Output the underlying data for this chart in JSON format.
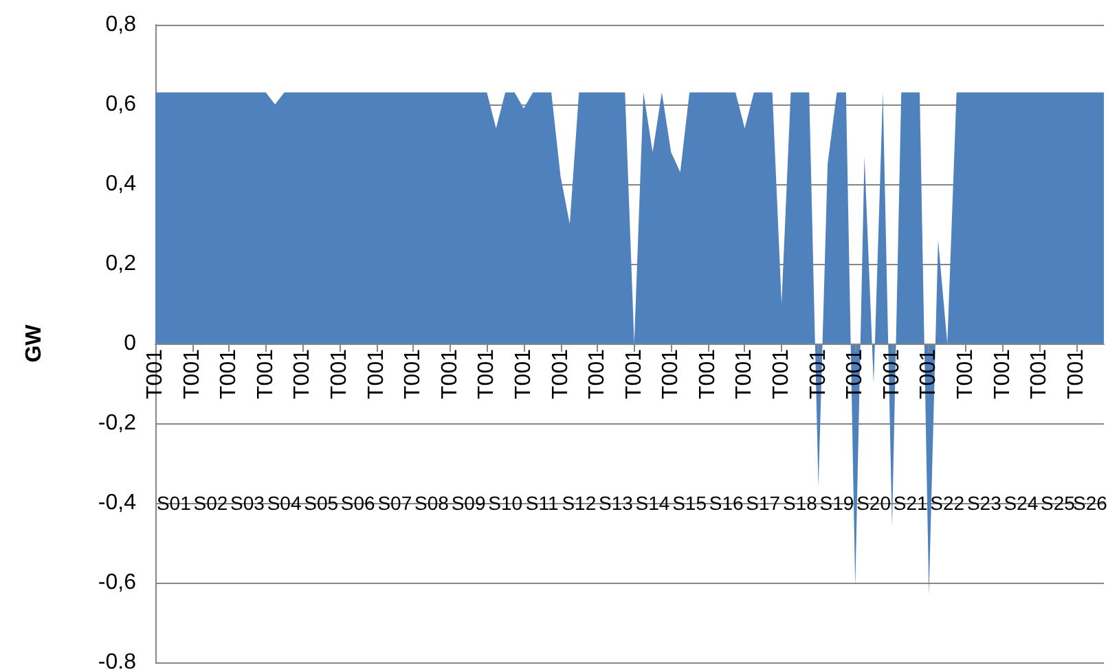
{
  "chart_data": {
    "type": "area",
    "ylabel": "GW",
    "color": "#4f81bd",
    "grid": "y",
    "categories": [
      "T001",
      null,
      null,
      null,
      "T001",
      null,
      null,
      null,
      "T001",
      null,
      null,
      null,
      "T001",
      null,
      null,
      null,
      "T001",
      null,
      null,
      null,
      "T001",
      null,
      null,
      null,
      "T001",
      null,
      null,
      null,
      "T001",
      null,
      null,
      null,
      "T001",
      null,
      null,
      null,
      "T001",
      null,
      null,
      null,
      "T001",
      null,
      null,
      null,
      "T001",
      null,
      null,
      null,
      "T001",
      null,
      null,
      null,
      "T001",
      null,
      null,
      null,
      "T001",
      null,
      null,
      null,
      "T001",
      null,
      null,
      null,
      "T001",
      null,
      null,
      null,
      "T001",
      null,
      null,
      null,
      "T001",
      null,
      null,
      null,
      "T001",
      null,
      null,
      null,
      "T001",
      null,
      null,
      null,
      "T001",
      null,
      null,
      null,
      "T001",
      null,
      null,
      null,
      "T001",
      null,
      null,
      null,
      "T001",
      null,
      null,
      null,
      "T001",
      null,
      null,
      null
    ],
    "values": [
      0.63,
      0.63,
      0.63,
      0.63,
      0.63,
      0.63,
      0.63,
      0.63,
      0.63,
      0.63,
      0.63,
      0.63,
      0.63,
      0.6,
      0.63,
      0.63,
      0.63,
      0.63,
      0.63,
      0.63,
      0.63,
      0.63,
      0.63,
      0.63,
      0.63,
      0.63,
      0.63,
      0.63,
      0.63,
      0.63,
      0.63,
      0.63,
      0.63,
      0.63,
      0.63,
      0.63,
      0.63,
      0.54,
      0.63,
      0.63,
      0.59,
      0.63,
      0.63,
      0.63,
      0.42,
      0.3,
      0.63,
      0.63,
      0.63,
      0.63,
      0.63,
      0.63,
      0.0,
      0.63,
      0.48,
      0.63,
      0.48,
      0.43,
      0.63,
      0.63,
      0.63,
      0.63,
      0.63,
      0.63,
      0.54,
      0.63,
      0.63,
      0.63,
      0.1,
      0.63,
      0.63,
      0.63,
      -0.36,
      0.45,
      0.63,
      0.63,
      -0.61,
      0.47,
      -0.1,
      0.63,
      -0.46,
      0.63,
      0.63,
      0.63,
      -0.63,
      0.26,
      0.0,
      0.63,
      0.63,
      0.63,
      0.63,
      0.63,
      0.63,
      0.63,
      0.63,
      0.63,
      0.63,
      0.63,
      0.63,
      0.63,
      0.63,
      0.63,
      0.63,
      0.63
    ],
    "ylim": [
      -0.8,
      0.8
    ],
    "yticks": [
      {
        "value": -0.8,
        "label": "-0.8"
      },
      {
        "value": -0.6,
        "label": "-0,6"
      },
      {
        "value": -0.4,
        "label": "-0,4"
      },
      {
        "value": -0.2,
        "label": "-0,2"
      },
      0,
      {
        "value": 0.2,
        "label": "0,2"
      },
      {
        "value": 0.4,
        "label": "0,4"
      },
      {
        "value": 0.6,
        "label": "0,6"
      },
      {
        "value": 0.8,
        "label": "0,8"
      }
    ],
    "annotations": [
      "S01",
      "S02",
      "S03",
      "S04",
      "S05",
      "S06",
      "S07",
      "S08",
      "S09",
      "S10",
      "S11",
      "S12",
      "S13",
      "S14",
      "S15",
      "S16",
      "S17",
      "S18",
      "S19",
      "S20",
      "S21",
      "S22",
      "S23",
      "S24",
      "S25",
      "S26"
    ]
  }
}
